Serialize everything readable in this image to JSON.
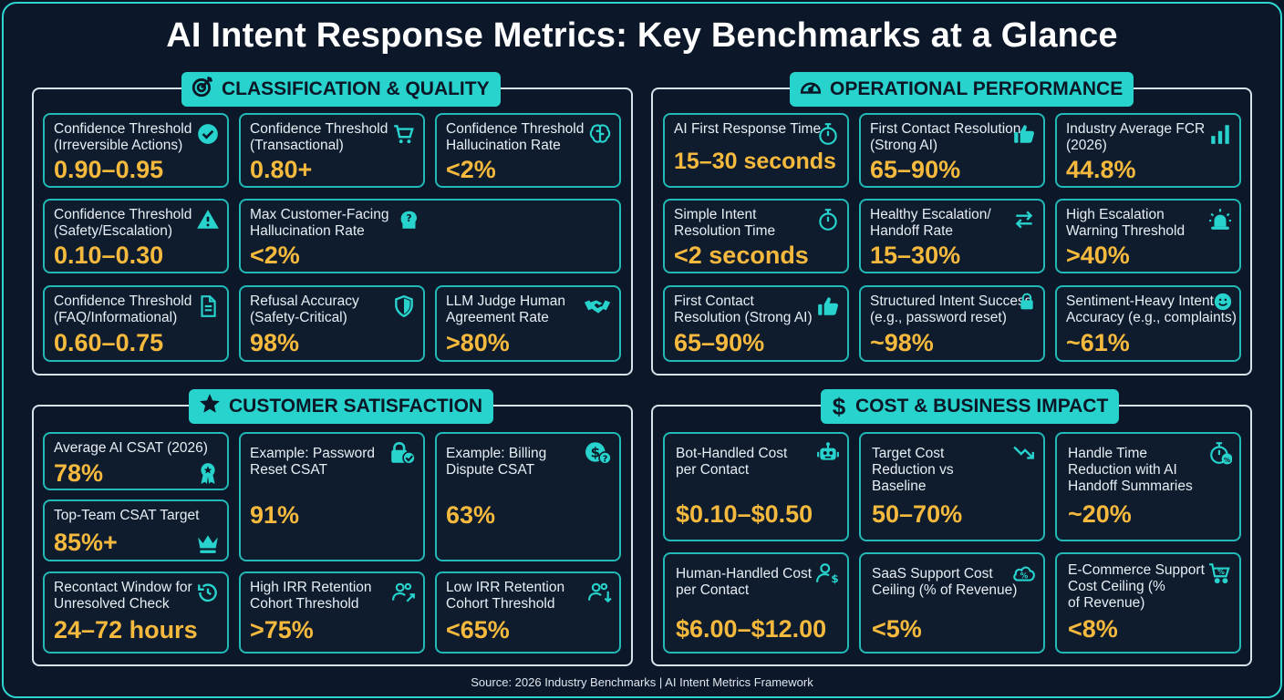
{
  "title": "AI Intent Response Metrics: Key Benchmarks at a Glance",
  "colors": {
    "accent": "#27d3cc",
    "value": "#f5b93d",
    "background": "#0c1829"
  },
  "sections": {
    "classification": {
      "title": "CLASSIFICATION & QUALITY",
      "icon": "target-icon",
      "cards": [
        {
          "label": "Confidence Threshold\n(Irreversible Actions)",
          "value": "0.90–0.95",
          "icon": "check-circle-icon"
        },
        {
          "label": "Confidence Threshold\n(Transactional)",
          "value": "0.80+",
          "icon": "cart-icon"
        },
        {
          "label": "Confidence Threshold\nHallucination Rate",
          "value": "<2%",
          "icon": "brain-icon"
        },
        {
          "label": "Confidence Threshold\n(Safety/Escalation)",
          "value": "0.10–0.30",
          "icon": "warning-icon"
        },
        {
          "label": "Max Customer-Facing\nHallucination Rate",
          "value": "<2%",
          "icon": "head-question-icon"
        },
        {
          "label": "Confidence Threshold\n(FAQ/Informational)",
          "value": "0.60–0.75",
          "icon": "document-icon"
        },
        {
          "label": "Refusal Accuracy\n(Safety-Critical)",
          "value": "98%",
          "icon": "shield-icon"
        },
        {
          "label": "LLM Judge Human\nAgreement Rate",
          "value": ">80%",
          "icon": "handshake-icon"
        }
      ]
    },
    "operational": {
      "title": "OPERATIONAL PERFORMANCE",
      "icon": "speedometer-icon",
      "cards": [
        {
          "label": "AI First Response Time",
          "value": "15–30 seconds",
          "icon": "stopwatch-icon"
        },
        {
          "label": "First Contact Resolution\n(Strong AI)",
          "value": "65–90%",
          "icon": "thumbs-up-icon"
        },
        {
          "label": "Industry Average FCR\n(2026)",
          "value": "44.8%",
          "icon": "bar-chart-icon"
        },
        {
          "label": "Simple Intent\nResolution Time",
          "value": "<2 seconds",
          "icon": "stopwatch-icon"
        },
        {
          "label": "Healthy Escalation/\nHandoff Rate",
          "value": "15–30%",
          "icon": "swap-arrows-icon"
        },
        {
          "label": "High Escalation\nWarning Threshold",
          "value": ">40%",
          "icon": "alarm-light-icon"
        },
        {
          "label": "First Contact\nResolution (Strong AI)",
          "value": "65–90%",
          "icon": "thumbs-up-icon"
        },
        {
          "label": "Structured Intent Success\n(e.g., password reset)",
          "value": "~98%",
          "icon": "lock-icon"
        },
        {
          "label": "Sentiment-Heavy Intent\nAccuracy (e.g., complaints)",
          "value": "~61%",
          "icon": "smiley-icon"
        }
      ]
    },
    "satisfaction": {
      "title": "CUSTOMER SATISFACTION",
      "icon": "star-icon",
      "cards": [
        {
          "label": "Average AI CSAT (2026)",
          "value": "78%",
          "icon": "award-ribbon-icon"
        },
        {
          "label": "Example: Password\nReset CSAT",
          "value": "91%",
          "icon": "lock-check-icon"
        },
        {
          "label": "Example: Billing\nDispute CSAT",
          "value": "63%",
          "icon": "dollar-question-icon"
        },
        {
          "label": "Top-Team CSAT Target",
          "value": "85%+",
          "icon": "crown-icon"
        },
        {
          "label": "Recontact Window for\nUnresolved Check",
          "value": "24–72 hours",
          "icon": "history-icon"
        },
        {
          "label": "High IRR Retention\nCohort Threshold",
          "value": ">75%",
          "icon": "users-up-icon"
        },
        {
          "label": "Low IRR Retention\nCohort Threshold",
          "value": "<65%",
          "icon": "users-down-icon"
        }
      ]
    },
    "cost": {
      "title": "COST & BUSINESS IMPACT",
      "icon": "dollar-icon",
      "cards": [
        {
          "label": "Bot-Handled Cost\nper Contact",
          "value": "$0.10–$0.50",
          "icon": "robot-icon"
        },
        {
          "label": "Target Cost\nReduction vs\nBaseline",
          "value": "50–70%",
          "icon": "trend-down-icon"
        },
        {
          "label": "Handle Time\nReduction with AI\nHandoff Summaries",
          "value": "~20%",
          "icon": "timer-percent-icon"
        },
        {
          "label": "Human-Handled Cost\nper Contact",
          "value": "$6.00–$12.00",
          "icon": "user-dollar-icon"
        },
        {
          "label": "SaaS Support Cost\nCeiling (% of Revenue)",
          "value": "<5%",
          "icon": "cloud-percent-icon"
        },
        {
          "label": "E-Commerce Support\nCost Ceiling (%\nof Revenue)",
          "value": "<8%",
          "icon": "cart-percent-icon"
        }
      ]
    }
  },
  "source": "Source: 2026 Industry Benchmarks | AI Intent Metrics Framework"
}
